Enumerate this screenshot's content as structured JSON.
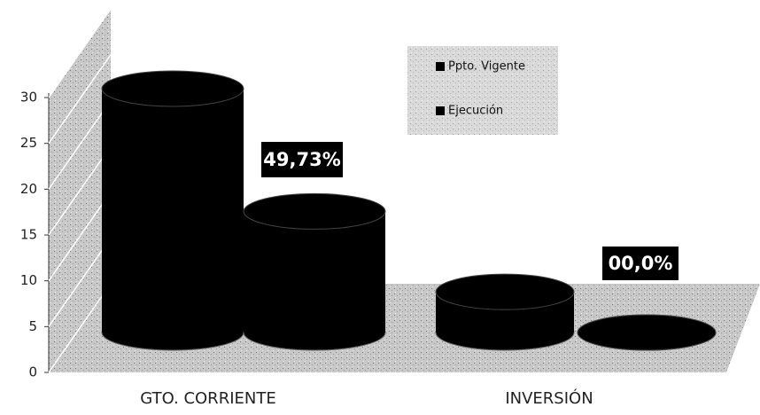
{
  "chart_data": {
    "type": "bar3d",
    "categories": [
      "GTO. CORRIENTE",
      "INVERSIÓN"
    ],
    "series": [
      {
        "name": "Ppto. Vigente",
        "color": "#000000",
        "values": [
          30,
          5
        ]
      },
      {
        "name": "Ejecución",
        "color": "#000000",
        "values": [
          14.9,
          0
        ]
      }
    ],
    "annotations": [
      "49,73%",
      "00,0%"
    ],
    "ylim": [
      0,
      30
    ],
    "yticks": [
      0,
      5,
      10,
      15,
      20,
      25,
      30
    ]
  }
}
